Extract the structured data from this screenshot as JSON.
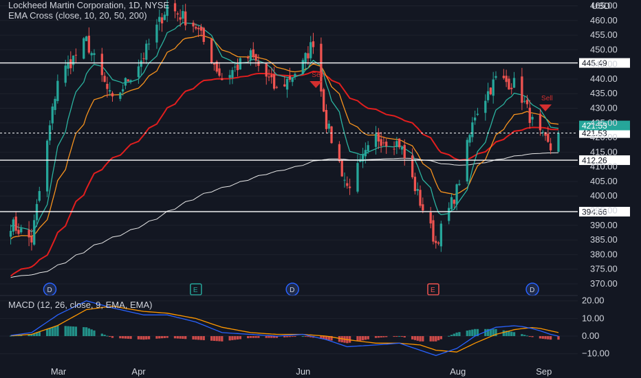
{
  "header": {
    "symbol_line": "Lockheed Martin Corporation, 1D, NYSE",
    "indicator_line": "EMA Cross (close, 10, 20, 50, 200)",
    "price_currency": "USD"
  },
  "macd": {
    "label": "MACD (12, 26, close, 9, EMA, EMA)"
  },
  "colors": {
    "background": "#131722",
    "up": "#26a69a",
    "down": "#ef5350",
    "ema10": "#2bb3a0",
    "ema20": "#f7931e",
    "ema50": "#e21e1e",
    "ema200": "#e8e8e8",
    "macd_line": "#2962ff",
    "signal_line": "#ff9800",
    "level_line": "#ffffff"
  },
  "chart_data": {
    "type": "candlestick",
    "x_labels": [
      "Mar",
      "Apr",
      "Jun",
      "Aug",
      "Sep"
    ],
    "y_ticks": [
      370,
      375,
      380,
      385,
      390,
      395,
      400,
      405,
      410,
      415,
      420,
      425,
      430,
      435,
      440,
      445,
      450,
      455,
      460,
      465
    ],
    "y_range": [
      366,
      467
    ],
    "last_price": "421.53",
    "horizontal_levels": [
      {
        "value": 445.49,
        "label": "445.49"
      },
      {
        "value": 421.53,
        "label": "421.53"
      },
      {
        "value": 412.26,
        "label": "412.26"
      },
      {
        "value": 394.66,
        "label": "394.66"
      }
    ],
    "events": [
      {
        "letter": "D",
        "date": "Feb 27",
        "type": "dividend"
      },
      {
        "letter": "E",
        "date": "Apr 23",
        "type": "earnings"
      },
      {
        "letter": "D",
        "date": "May 30",
        "type": "dividend"
      },
      {
        "letter": "E",
        "date": "Jul 23",
        "type": "earnings"
      },
      {
        "letter": "D",
        "date": "Aug 30",
        "type": "dividend"
      }
    ],
    "signals": [
      {
        "label": "Sell",
        "date": "Jun 8",
        "type": "sell"
      },
      {
        "label": "Sell",
        "date": "Sep 4",
        "type": "sell"
      }
    ],
    "price_series": [
      {
        "date": "Feb 10",
        "close": 392
      },
      {
        "date": "Feb 20",
        "close": 385
      },
      {
        "date": "Mar 1",
        "close": 440
      },
      {
        "date": "Mar 12",
        "close": 453
      },
      {
        "date": "Mar 22",
        "close": 432
      },
      {
        "date": "Apr 3",
        "close": 448
      },
      {
        "date": "Apr 12",
        "close": 465
      },
      {
        "date": "Apr 23",
        "close": 458
      },
      {
        "date": "May 3",
        "close": 440
      },
      {
        "date": "May 14",
        "close": 448
      },
      {
        "date": "May 24",
        "close": 436
      },
      {
        "date": "Jun 3",
        "close": 445
      },
      {
        "date": "Jun 7",
        "close": 453
      },
      {
        "date": "Jun 12",
        "close": 425
      },
      {
        "date": "Jun 20",
        "close": 403
      },
      {
        "date": "Jul 1",
        "close": 420
      },
      {
        "date": "Jul 10",
        "close": 418
      },
      {
        "date": "Jul 18",
        "close": 398
      },
      {
        "date": "Jul 24",
        "close": 384
      },
      {
        "date": "Aug 1",
        "close": 402
      },
      {
        "date": "Aug 8",
        "close": 428
      },
      {
        "date": "Aug 16",
        "close": 440
      },
      {
        "date": "Aug 24",
        "close": 438
      },
      {
        "date": "Aug 31",
        "close": 423
      },
      {
        "date": "Sep 6",
        "close": 416
      },
      {
        "date": "Sep 9",
        "close": 421.53
      }
    ],
    "macd_axis": {
      "ticks": [
        20,
        10,
        0,
        -10
      ],
      "labels": [
        "20.00",
        "10.00",
        "0.00",
        "−10.00"
      ],
      "range": [
        -14,
        23
      ]
    },
    "macd_series": [
      {
        "date": "Feb 10",
        "macd": 0,
        "signal": 0
      },
      {
        "date": "Feb 20",
        "macd": 2,
        "signal": 1
      },
      {
        "date": "Mar 1",
        "macd": 12,
        "signal": 6
      },
      {
        "date": "Mar 12",
        "macd": 20,
        "signal": 15
      },
      {
        "date": "Mar 22",
        "macd": 16,
        "signal": 17
      },
      {
        "date": "Apr 3",
        "macd": 12,
        "signal": 14
      },
      {
        "date": "Apr 12",
        "macd": 12,
        "signal": 13
      },
      {
        "date": "Apr 23",
        "macd": 8,
        "signal": 10
      },
      {
        "date": "May 3",
        "macd": 2,
        "signal": 5
      },
      {
        "date": "May 14",
        "macd": 1,
        "signal": 2
      },
      {
        "date": "May 24",
        "macd": 0,
        "signal": 1
      },
      {
        "date": "Jun 3",
        "macd": 1,
        "signal": 1
      },
      {
        "date": "Jun 12",
        "macd": -2,
        "signal": 0
      },
      {
        "date": "Jun 20",
        "macd": -6,
        "signal": -2
      },
      {
        "date": "Jul 1",
        "macd": -5,
        "signal": -4
      },
      {
        "date": "Jul 10",
        "macd": -4,
        "signal": -4
      },
      {
        "date": "Jul 18",
        "macd": -8,
        "signal": -5
      },
      {
        "date": "Jul 24",
        "macd": -11,
        "signal": -8
      },
      {
        "date": "Aug 1",
        "macd": -7,
        "signal": -9
      },
      {
        "date": "Aug 8",
        "macd": 0,
        "signal": -4
      },
      {
        "date": "Aug 16",
        "macd": 5,
        "signal": 1
      },
      {
        "date": "Aug 24",
        "macd": 6,
        "signal": 4
      },
      {
        "date": "Aug 31",
        "macd": 4,
        "signal": 5
      },
      {
        "date": "Sep 6",
        "macd": 1,
        "signal": 3
      },
      {
        "date": "Sep 9",
        "macd": 0,
        "signal": 2
      }
    ]
  }
}
